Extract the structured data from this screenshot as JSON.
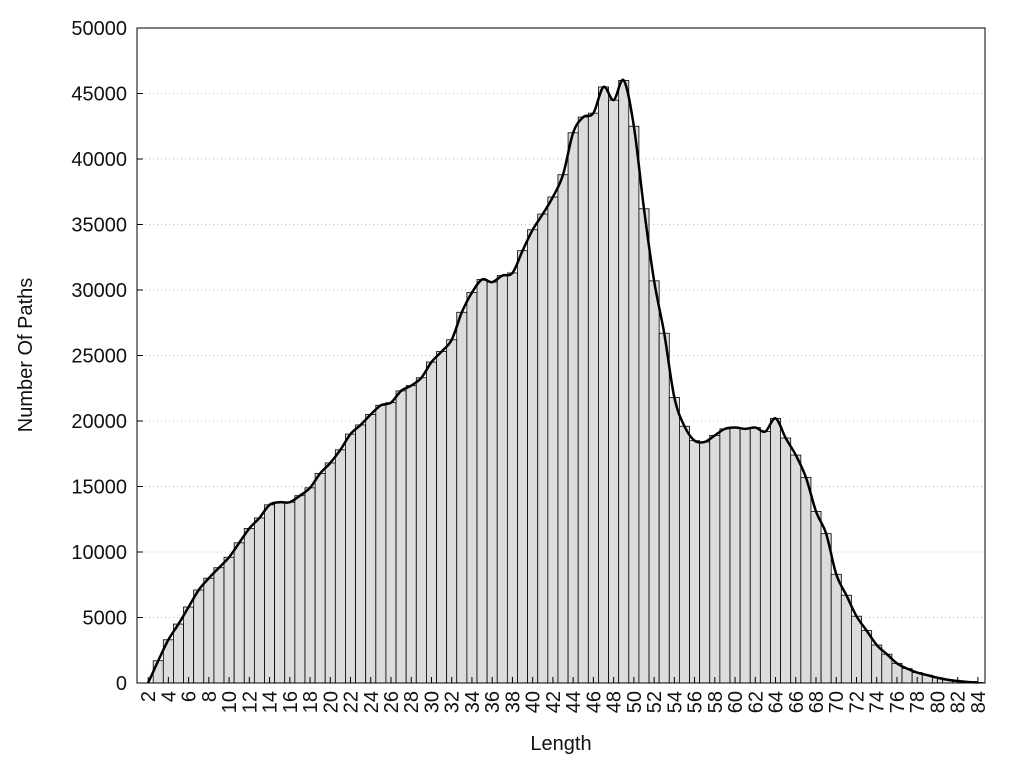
{
  "chart_data": {
    "type": "bar",
    "x_label": "Length",
    "y_label": "Number Of Paths",
    "x": [
      2,
      3,
      4,
      5,
      6,
      7,
      8,
      9,
      10,
      11,
      12,
      13,
      14,
      15,
      16,
      17,
      18,
      19,
      20,
      21,
      22,
      23,
      24,
      25,
      26,
      27,
      28,
      29,
      30,
      31,
      32,
      33,
      34,
      35,
      36,
      37,
      38,
      39,
      40,
      41,
      42,
      43,
      44,
      45,
      46,
      47,
      48,
      49,
      50,
      51,
      52,
      53,
      54,
      55,
      56,
      57,
      58,
      59,
      60,
      61,
      62,
      63,
      64,
      65,
      66,
      67,
      68,
      69,
      70,
      71,
      72,
      73,
      74,
      75,
      76,
      77,
      78,
      79,
      80,
      81,
      82,
      83,
      84
    ],
    "values": [
      0,
      1700,
      3300,
      4500,
      5800,
      7100,
      8000,
      8800,
      9600,
      10700,
      11800,
      12600,
      13600,
      13800,
      13800,
      14300,
      14900,
      16000,
      16800,
      17800,
      19000,
      19700,
      20500,
      21200,
      21400,
      22300,
      22700,
      23300,
      24500,
      25300,
      26200,
      28300,
      29800,
      30800,
      30600,
      31100,
      31300,
      33000,
      34600,
      35800,
      37100,
      38800,
      42000,
      43200,
      43500,
      45500,
      44500,
      46000,
      42500,
      36200,
      30700,
      26700,
      21800,
      19600,
      18500,
      18400,
      18900,
      19400,
      19500,
      19400,
      19500,
      19200,
      20200,
      18700,
      17400,
      15700,
      13100,
      11400,
      8300,
      6700,
      5100,
      4000,
      2900,
      2200,
      1500,
      1100,
      800,
      600,
      400,
      250,
      150,
      80,
      40
    ],
    "color": "#dcdcdc",
    "smooth_line": true,
    "line_color": "#000000",
    "xlim": [
      0.9,
      84.7
    ],
    "xticks": [
      2,
      4,
      6,
      8,
      10,
      12,
      14,
      16,
      18,
      20,
      22,
      24,
      26,
      28,
      30,
      32,
      34,
      36,
      38,
      40,
      42,
      44,
      46,
      48,
      50,
      52,
      54,
      56,
      58,
      60,
      62,
      64,
      66,
      68,
      70,
      72,
      74,
      76,
      78,
      80,
      82,
      84
    ],
    "ylim": [
      0,
      50000
    ],
    "yticks": [
      0,
      5000,
      10000,
      15000,
      20000,
      25000,
      30000,
      35000,
      40000,
      45000,
      50000
    ],
    "grid": true
  }
}
